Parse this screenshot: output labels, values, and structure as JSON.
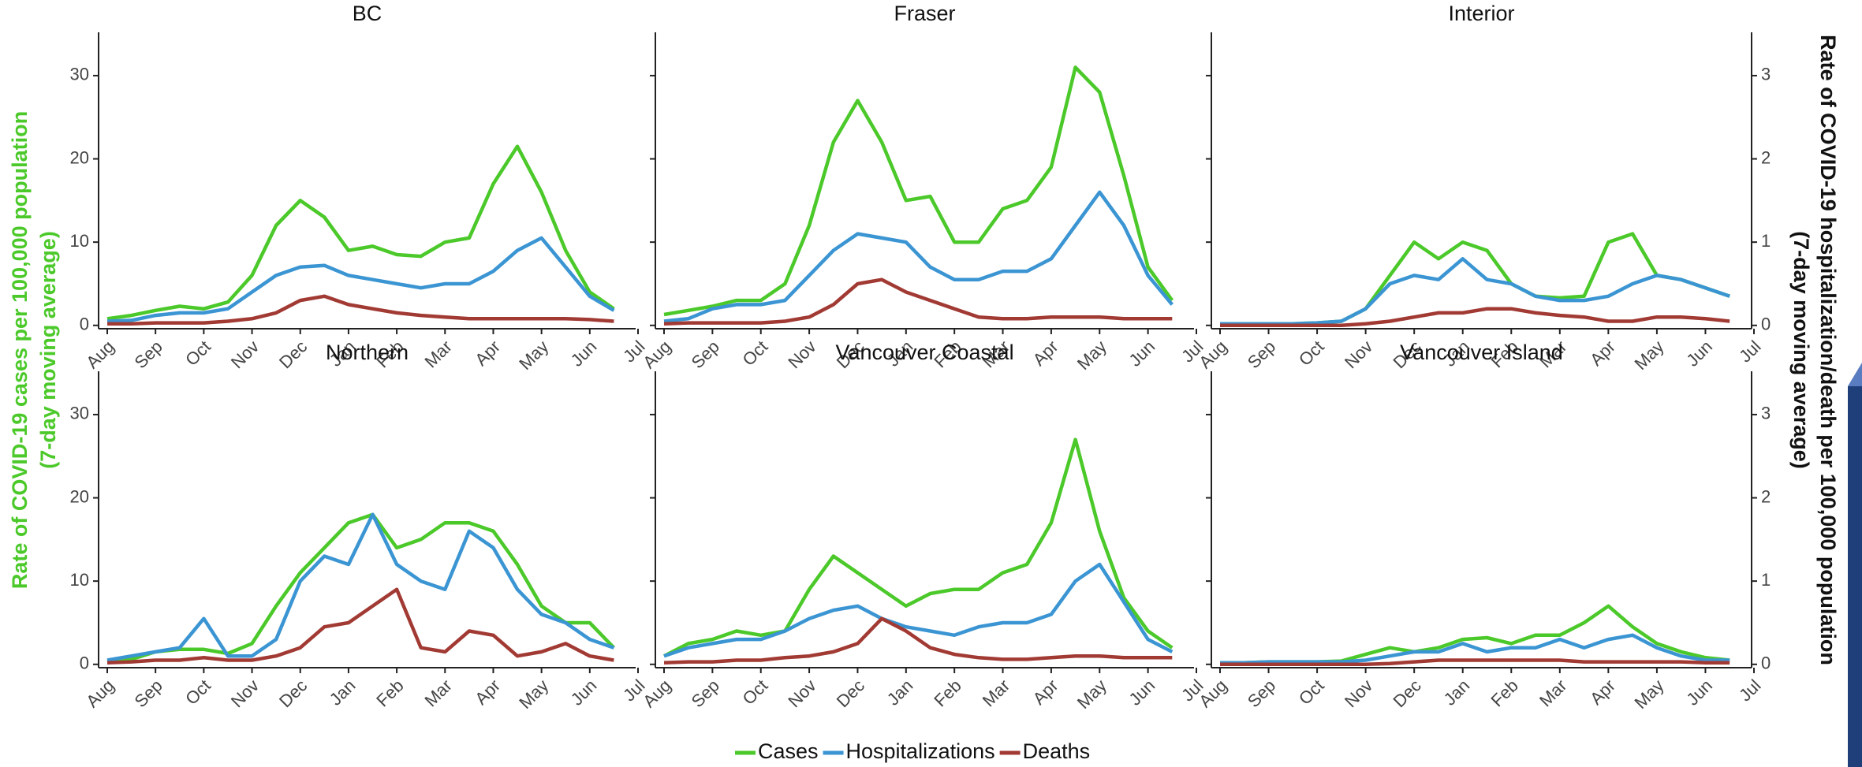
{
  "chart_data": {
    "type": "line",
    "ylabel": [
      "Rate of COVID-19 cases per 100,000 population",
      "(7-day moving average)"
    ],
    "y2label": [
      "Rate of COVID-19 hospitalization/death per 100,000 population",
      "(7-day moving average)"
    ],
    "categories": [
      "Aug",
      null,
      "Sep",
      null,
      "Oct",
      null,
      "Nov",
      null,
      "Dec",
      null,
      "Jan",
      null,
      "Feb",
      null,
      "Mar",
      null,
      "Apr",
      null,
      "May",
      null,
      "Jun",
      null,
      "Jul"
    ],
    "ylim": [
      -0.4,
      35.2
    ],
    "yticks": [
      0,
      10,
      20,
      30
    ],
    "y2lim": [
      -0.04,
      3.52
    ],
    "y2ticks": [
      0,
      1,
      2,
      3
    ],
    "grid": false,
    "legend": "bottom",
    "series": [
      {
        "name": "Cases",
        "color": "#4cc92a",
        "axis": "y"
      },
      {
        "name": "Hospitalizations",
        "color": "#3b95d3",
        "axis": "y2"
      },
      {
        "name": "Deaths",
        "color": "#a23a34",
        "axis": "y2"
      }
    ],
    "panels": [
      {
        "title": "BC",
        "values": [
          [
            0.8,
            1.2,
            1.8,
            2.3,
            2.0,
            2.8,
            6,
            12,
            15,
            13,
            9,
            9.5,
            8.5,
            8.3,
            10,
            10.5,
            17,
            21.5,
            16,
            9,
            4,
            2,
            null
          ],
          [
            0.05,
            0.06,
            0.12,
            0.15,
            0.15,
            0.2,
            0.4,
            0.6,
            0.7,
            0.72,
            0.6,
            0.55,
            0.5,
            0.45,
            0.5,
            0.5,
            0.65,
            0.9,
            1.05,
            0.7,
            0.35,
            0.18,
            null
          ],
          [
            0.02,
            0.02,
            0.03,
            0.03,
            0.03,
            0.05,
            0.08,
            0.15,
            0.3,
            0.35,
            0.25,
            0.2,
            0.15,
            0.12,
            0.1,
            0.08,
            0.08,
            0.08,
            0.08,
            0.08,
            0.07,
            0.05,
            null
          ]
        ]
      },
      {
        "title": "Fraser",
        "values": [
          [
            1.3,
            1.8,
            2.3,
            3.0,
            3.0,
            5,
            12,
            22,
            27,
            22,
            15,
            15.5,
            10,
            10,
            14,
            15,
            19,
            31,
            28,
            18,
            7,
            3,
            null
          ],
          [
            0.05,
            0.08,
            0.2,
            0.25,
            0.25,
            0.3,
            0.6,
            0.9,
            1.1,
            1.05,
            1.0,
            0.7,
            0.55,
            0.55,
            0.65,
            0.65,
            0.8,
            1.2,
            1.6,
            1.2,
            0.6,
            0.25,
            null
          ],
          [
            0.02,
            0.03,
            0.03,
            0.03,
            0.03,
            0.05,
            0.1,
            0.25,
            0.5,
            0.55,
            0.4,
            0.3,
            0.2,
            0.1,
            0.08,
            0.08,
            0.1,
            0.1,
            0.1,
            0.08,
            0.08,
            0.08,
            null
          ]
        ]
      },
      {
        "title": "Interior",
        "values": [
          [
            0.2,
            0.2,
            0.2,
            0.2,
            0.3,
            0.5,
            2,
            6,
            10,
            8,
            10,
            9,
            5,
            3.5,
            3.3,
            3.5,
            10,
            11,
            6,
            5.5,
            4.5,
            3.5,
            null
          ],
          [
            0.02,
            0.02,
            0.02,
            0.02,
            0.03,
            0.05,
            0.2,
            0.5,
            0.6,
            0.55,
            0.8,
            0.55,
            0.5,
            0.35,
            0.3,
            0.3,
            0.35,
            0.5,
            0.6,
            0.55,
            0.45,
            0.35,
            null
          ],
          [
            0,
            0,
            0,
            0,
            0,
            0,
            0.02,
            0.05,
            0.1,
            0.15,
            0.15,
            0.2,
            0.2,
            0.15,
            0.12,
            0.1,
            0.05,
            0.05,
            0.1,
            0.1,
            0.08,
            0.05,
            null
          ]
        ]
      },
      {
        "title": "Northern",
        "values": [
          [
            0.3,
            0.6,
            1.5,
            1.8,
            1.8,
            1.3,
            2.5,
            7,
            11,
            14,
            17,
            18,
            14,
            15,
            17,
            17,
            16,
            12,
            7,
            5,
            5,
            2,
            null
          ],
          [
            0.05,
            0.1,
            0.15,
            0.2,
            0.55,
            0.1,
            0.1,
            0.3,
            1.0,
            1.3,
            1.2,
            1.8,
            1.2,
            1.0,
            0.9,
            1.6,
            1.4,
            0.9,
            0.6,
            0.5,
            0.3,
            0.2,
            null
          ],
          [
            0.02,
            0.03,
            0.05,
            0.05,
            0.08,
            0.05,
            0.05,
            0.1,
            0.2,
            0.45,
            0.5,
            0.7,
            0.9,
            0.2,
            0.15,
            0.4,
            0.35,
            0.1,
            0.15,
            0.25,
            0.1,
            0.05,
            null
          ]
        ]
      },
      {
        "title": "Vancouver Coastal",
        "values": [
          [
            1.0,
            2.5,
            3.0,
            4.0,
            3.5,
            4,
            9,
            13,
            11,
            9,
            7,
            8.5,
            9,
            9,
            11,
            12,
            17,
            27,
            16,
            8,
            4,
            2,
            null
          ],
          [
            0.1,
            0.2,
            0.25,
            0.3,
            0.3,
            0.4,
            0.55,
            0.65,
            0.7,
            0.55,
            0.45,
            0.4,
            0.35,
            0.45,
            0.5,
            0.5,
            0.6,
            1.0,
            1.2,
            0.75,
            0.3,
            0.15,
            null
          ],
          [
            0.02,
            0.03,
            0.03,
            0.05,
            0.05,
            0.08,
            0.1,
            0.15,
            0.25,
            0.55,
            0.4,
            0.2,
            0.12,
            0.08,
            0.06,
            0.06,
            0.08,
            0.1,
            0.1,
            0.08,
            0.08,
            0.08,
            null
          ]
        ]
      },
      {
        "title": "Vancouver Island",
        "values": [
          [
            0.1,
            0.2,
            0.3,
            0.3,
            0.3,
            0.4,
            1.2,
            2.0,
            1.5,
            2.0,
            3.0,
            3.2,
            2.5,
            3.5,
            3.5,
            5,
            7,
            4.5,
            2.5,
            1.5,
            0.8,
            0.5,
            null
          ],
          [
            0.02,
            0.02,
            0.03,
            0.03,
            0.03,
            0.03,
            0.05,
            0.1,
            0.15,
            0.15,
            0.25,
            0.15,
            0.2,
            0.2,
            0.3,
            0.2,
            0.3,
            0.35,
            0.2,
            0.1,
            0.05,
            0.05,
            null
          ],
          [
            0,
            0,
            0,
            0,
            0,
            0,
            0,
            0.01,
            0.03,
            0.05,
            0.05,
            0.05,
            0.05,
            0.05,
            0.05,
            0.03,
            0.03,
            0.03,
            0.03,
            0.03,
            0.02,
            0.02,
            null
          ]
        ]
      }
    ]
  }
}
